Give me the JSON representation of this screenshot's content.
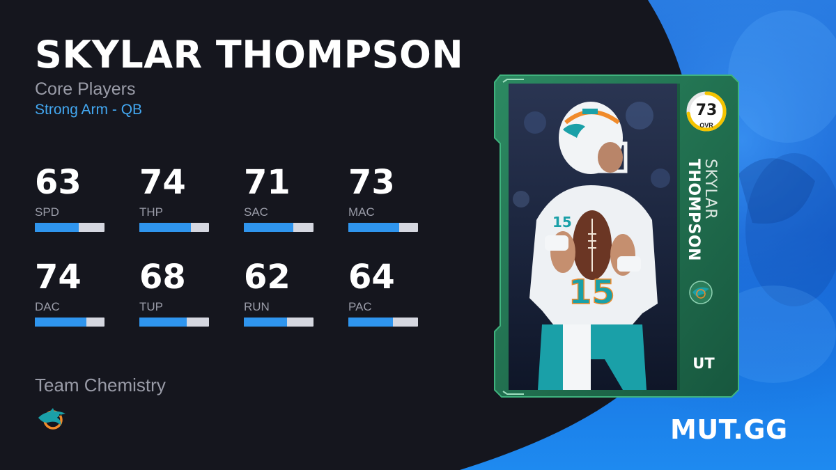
{
  "player": {
    "name": "SKYLAR THOMPSON",
    "program": "Core Players",
    "archetype": "Strong Arm - QB"
  },
  "stats": [
    {
      "value": "63",
      "label": "SPD",
      "fill": 0.63
    },
    {
      "value": "74",
      "label": "THP",
      "fill": 0.74
    },
    {
      "value": "71",
      "label": "SAC",
      "fill": 0.71
    },
    {
      "value": "73",
      "label": "MAC",
      "fill": 0.73
    },
    {
      "value": "74",
      "label": "DAC",
      "fill": 0.74
    },
    {
      "value": "68",
      "label": "TUP",
      "fill": 0.68
    },
    {
      "value": "62",
      "label": "RUN",
      "fill": 0.62
    },
    {
      "value": "64",
      "label": "PAC",
      "fill": 0.64
    }
  ],
  "chemistry": {
    "title": "Team Chemistry",
    "team_icon": "dolphins-logo-icon"
  },
  "card": {
    "ovr": "73",
    "ovr_label": "OVR",
    "ovr_fill": 0.73,
    "first_name": "SKYLAR",
    "last_name": "THOMPSON",
    "badge": "UT",
    "team_icon": "dolphins-logo-icon"
  },
  "brand": "MUT.GG",
  "colors": {
    "background": "#15161e",
    "accent_blue": "#2f95ee",
    "archetype_blue": "#43a8f2",
    "card_green": "#1f6b4d",
    "ovr_ring": "#f5c400",
    "right_panel_blue": "#1b6fe0",
    "team_aqua": "#1aa0a8",
    "team_orange": "#f08a2a"
  }
}
